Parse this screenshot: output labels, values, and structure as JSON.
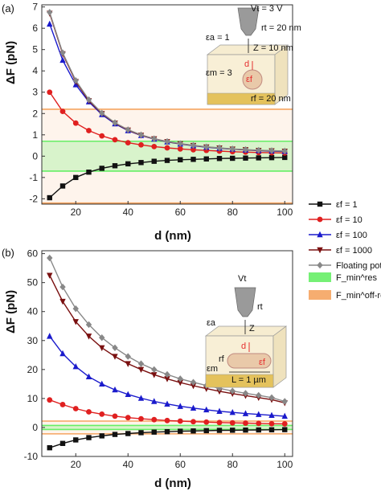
{
  "panel_labels": [
    "(a)",
    "(b)"
  ],
  "legend": {
    "entries": [
      "εf = 1",
      "εf = 10",
      "εf = 100",
      "εf = 1000",
      "Floating potential"
    ],
    "band_entries": [
      "F_min^res",
      "F_min^off-res"
    ]
  },
  "inset_a": {
    "labels": [
      "Vt = 3 V",
      "rt = 20 nm",
      "εa = 1",
      "Z = 10 nm",
      "d",
      "εm = 3",
      "εf",
      "rf = 20 nm"
    ]
  },
  "inset_b": {
    "labels": [
      "Vt",
      "rt",
      "εa",
      "Z",
      "d",
      "rf",
      "εm",
      "εf",
      "L = 1 µm"
    ]
  },
  "colors": {
    "eps1": "#111111",
    "eps10": "#e02020",
    "eps100": "#1a1acc",
    "eps1000": "#7a1010",
    "floating": "#888888",
    "res_band": "#66ee66",
    "offres_band": "#f5a460"
  },
  "chart_data": [
    {
      "type": "line",
      "panel": "(a)",
      "xlabel": "d (nm)",
      "ylabel": "ΔF (pN)",
      "xlim": [
        7,
        103
      ],
      "ylim": [
        -2.25,
        7.1
      ],
      "xticks": [
        20,
        40,
        60,
        80,
        100
      ],
      "yticks": [
        -2,
        -1,
        0,
        1,
        2,
        3,
        4,
        5,
        6,
        7
      ],
      "bands": [
        {
          "name": "F_min^off-res",
          "y": [
            -2.2,
            2.2
          ],
          "color": "offres"
        },
        {
          "name": "F_min^res",
          "y": [
            -0.7,
            0.7
          ],
          "color": "res"
        }
      ],
      "x": [
        10,
        15,
        20,
        25,
        30,
        35,
        40,
        45,
        50,
        55,
        60,
        65,
        70,
        75,
        80,
        85,
        90,
        95,
        100
      ],
      "series": [
        {
          "name": "εf = 1",
          "key": "eps1",
          "marker": "square",
          "values": [
            -1.95,
            -1.4,
            -1.0,
            -0.75,
            -0.57,
            -0.45,
            -0.36,
            -0.3,
            -0.24,
            -0.2,
            -0.17,
            -0.15,
            -0.13,
            -0.11,
            -0.1,
            -0.09,
            -0.08,
            -0.07,
            -0.06
          ]
        },
        {
          "name": "εf = 10",
          "key": "eps10",
          "marker": "circle",
          "values": [
            3.0,
            2.1,
            1.55,
            1.2,
            0.95,
            0.77,
            0.63,
            0.53,
            0.45,
            0.39,
            0.34,
            0.3,
            0.27,
            0.24,
            0.21,
            0.19,
            0.17,
            0.16,
            0.15
          ]
        },
        {
          "name": "εf = 100",
          "key": "eps100",
          "marker": "triangle",
          "values": [
            6.2,
            4.5,
            3.35,
            2.55,
            1.95,
            1.52,
            1.2,
            0.97,
            0.8,
            0.67,
            0.57,
            0.49,
            0.42,
            0.37,
            0.33,
            0.29,
            0.26,
            0.24,
            0.22
          ]
        },
        {
          "name": "εf = 1000",
          "key": "eps1000",
          "marker": "triangle-down",
          "values": [
            6.7,
            4.8,
            3.5,
            2.6,
            2.0,
            1.55,
            1.22,
            0.98,
            0.81,
            0.68,
            0.58,
            0.5,
            0.43,
            0.38,
            0.33,
            0.3,
            0.27,
            0.25,
            0.23
          ]
        },
        {
          "name": "Floating potential",
          "key": "floating",
          "marker": "diamond",
          "values": [
            6.75,
            4.85,
            3.55,
            2.65,
            2.02,
            1.57,
            1.24,
            1.0,
            0.82,
            0.69,
            0.59,
            0.51,
            0.44,
            0.39,
            0.34,
            0.31,
            0.28,
            0.26,
            0.24
          ]
        }
      ]
    },
    {
      "type": "line",
      "panel": "(b)",
      "xlabel": "d (nm)",
      "ylabel": "ΔF (pN)",
      "xlim": [
        7,
        103
      ],
      "ylim": [
        -10,
        61
      ],
      "xticks": [
        20,
        40,
        60,
        80,
        100
      ],
      "yticks": [
        -10,
        0,
        10,
        20,
        30,
        40,
        50,
        60
      ],
      "bands": [
        {
          "name": "F_min^off-res",
          "y": [
            -2.2,
            2.2
          ],
          "color": "offres"
        },
        {
          "name": "F_min^res",
          "y": [
            -0.7,
            0.7
          ],
          "color": "res"
        }
      ],
      "x": [
        10,
        15,
        20,
        25,
        30,
        35,
        40,
        45,
        50,
        55,
        60,
        65,
        70,
        75,
        80,
        85,
        90,
        95,
        100
      ],
      "series": [
        {
          "name": "εf = 1",
          "key": "eps1",
          "marker": "square",
          "values": [
            -7.0,
            -5.5,
            -4.3,
            -3.5,
            -2.9,
            -2.4,
            -2.1,
            -1.8,
            -1.6,
            -1.45,
            -1.3,
            -1.2,
            -1.1,
            -1.0,
            -0.95,
            -0.9,
            -0.85,
            -0.8,
            -0.75
          ]
        },
        {
          "name": "εf = 10",
          "key": "eps10",
          "marker": "circle",
          "values": [
            9.5,
            7.9,
            6.5,
            5.4,
            4.6,
            3.9,
            3.4,
            3.0,
            2.7,
            2.4,
            2.2,
            2.0,
            1.85,
            1.7,
            1.6,
            1.5,
            1.4,
            1.3,
            1.25
          ]
        },
        {
          "name": "εf = 100",
          "key": "eps100",
          "marker": "triangle",
          "values": [
            31.5,
            25.5,
            21.0,
            17.5,
            15.0,
            13.0,
            11.4,
            10.1,
            9.0,
            8.1,
            7.3,
            6.7,
            6.1,
            5.6,
            5.2,
            4.8,
            4.5,
            4.2,
            3.9
          ]
        },
        {
          "name": "εf = 1000",
          "key": "eps1000",
          "marker": "triangle-down",
          "values": [
            52.5,
            43.5,
            36.5,
            31.5,
            27.5,
            24.5,
            22.0,
            20.0,
            18.2,
            16.8,
            15.5,
            14.4,
            13.4,
            12.5,
            11.7,
            11.0,
            10.3,
            9.6,
            8.5
          ]
        },
        {
          "name": "Floating potential",
          "key": "floating",
          "marker": "diamond",
          "values": [
            58.5,
            48.5,
            41.0,
            35.5,
            31.0,
            27.5,
            24.5,
            22.0,
            20.0,
            18.3,
            16.8,
            15.6,
            14.5,
            13.5,
            12.6,
            11.8,
            11.1,
            10.3,
            9.0
          ]
        }
      ]
    }
  ]
}
